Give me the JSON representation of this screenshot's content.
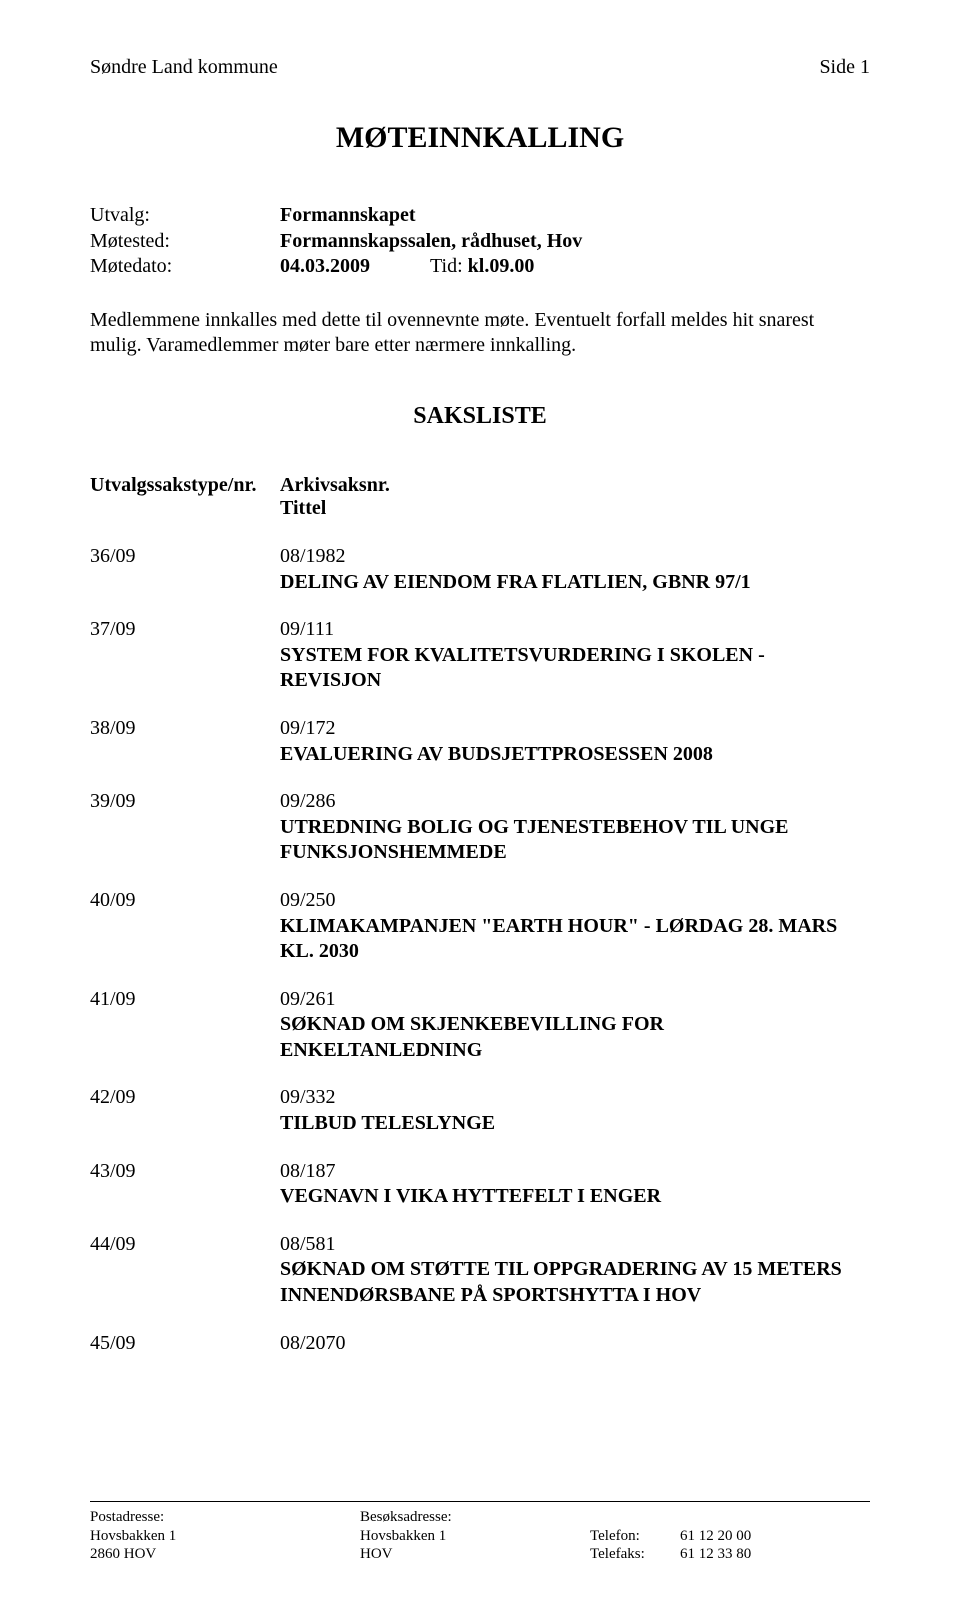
{
  "header": {
    "org": "Søndre Land kommune",
    "page_label": "Side 1"
  },
  "title": "MØTEINNKALLING",
  "meta": {
    "utvalg_label": "Utvalg:",
    "utvalg_value": "Formannskapet",
    "motested_label": "Møtested:",
    "motested_value": "Formannskapssalen, rådhuset, Hov",
    "motedato_label": "Møtedato:",
    "motedato_value": "04.03.2009",
    "tid_label": "Tid:",
    "tid_value": "kl.09.00"
  },
  "intro": "Medlemmene innkalles med dette til ovennevnte møte. Eventuelt forfall meldes hit snarest mulig. Varamedlemmer møter bare etter nærmere innkalling.",
  "saksliste_title": "SAKSLISTE",
  "col_headers": {
    "case": "Utvalgssakstype/nr.",
    "arkiv": "Arkivsaksnr.",
    "tittel": "Tittel"
  },
  "items": [
    {
      "case": "36/09",
      "arkiv": "08/1982",
      "title": "DELING AV EIENDOM FRA FLATLIEN, GBNR 97/1"
    },
    {
      "case": "37/09",
      "arkiv": "09/111",
      "title": "SYSTEM FOR KVALITETSVURDERING I SKOLEN - REVISJON"
    },
    {
      "case": "38/09",
      "arkiv": "09/172",
      "title": "EVALUERING AV BUDSJETTPROSESSEN 2008"
    },
    {
      "case": "39/09",
      "arkiv": "09/286",
      "title": "UTREDNING BOLIG OG TJENESTEBEHOV TIL UNGE FUNKSJONSHEMMEDE"
    },
    {
      "case": "40/09",
      "arkiv": "09/250",
      "title": "KLIMAKAMPANJEN \"EARTH HOUR\" - LØRDAG 28. MARS KL. 2030"
    },
    {
      "case": "41/09",
      "arkiv": "09/261",
      "title": "SØKNAD OM SKJENKEBEVILLING FOR ENKELTANLEDNING"
    },
    {
      "case": "42/09",
      "arkiv": "09/332",
      "title": "TILBUD TELESLYNGE"
    },
    {
      "case": "43/09",
      "arkiv": "08/187",
      "title": "VEGNAVN I VIKA HYTTEFELT I ENGER"
    },
    {
      "case": "44/09",
      "arkiv": "08/581",
      "title": "SØKNAD OM STØTTE TIL OPPGRADERING AV 15 METERS INNENDØRSBANE PÅ SPORTSHYTTA I HOV"
    },
    {
      "case": "45/09",
      "arkiv": "08/2070",
      "title": ""
    }
  ],
  "footer": {
    "post_label": "Postadresse:",
    "post_line1": "Hovsbakken 1",
    "post_line2": "2860 HOV",
    "visit_label": "Besøksadresse:",
    "visit_line1": "Hovsbakken 1",
    "visit_line2": "HOV",
    "phone_label": "Telefon:",
    "phone_value": "61 12 20 00",
    "fax_label": "Telefaks:",
    "fax_value": "61 12 33 80"
  }
}
